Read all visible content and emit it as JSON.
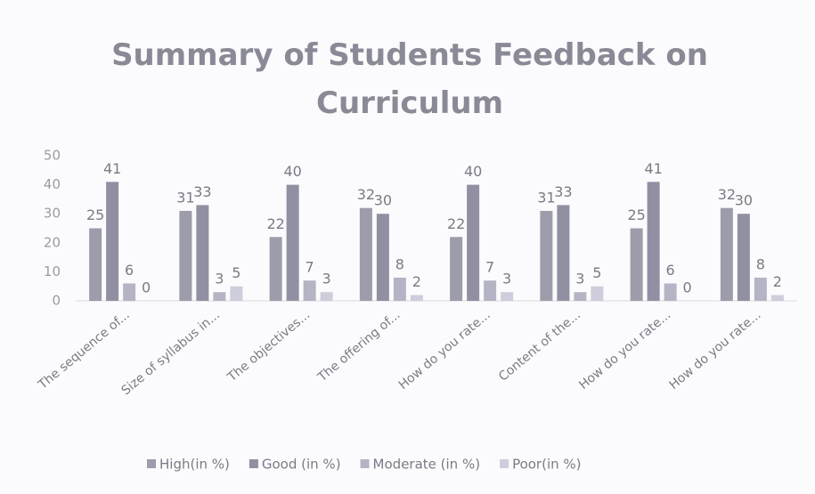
{
  "chart_data": {
    "type": "bar",
    "title": "Summary of Students Feedback on Curriculum",
    "categories": [
      "The sequence of...",
      "Size of syllabus in...",
      "The objectives...",
      "The offering of...",
      "How do you rate...",
      "Content of the...",
      "How do you rate...",
      "How do you rate..."
    ],
    "series": [
      {
        "name": "High(in %)",
        "color": "#9c9caa",
        "values": [
          25,
          31,
          22,
          32,
          22,
          31,
          25,
          32
        ]
      },
      {
        "name": "Good (in %)",
        "color": "#9090a2",
        "values": [
          41,
          33,
          40,
          30,
          40,
          33,
          41,
          30
        ]
      },
      {
        "name": "Moderate (in %)",
        "color": "#b4b4c4",
        "values": [
          6,
          3,
          7,
          8,
          7,
          3,
          6,
          8
        ]
      },
      {
        "name": "Poor(in %)",
        "color": "#cdcddb",
        "values": [
          0,
          5,
          3,
          2,
          3,
          5,
          0,
          2
        ]
      }
    ],
    "ylim": [
      0,
      50
    ],
    "yticks": [
      0,
      10,
      20,
      30,
      40,
      50
    ],
    "grid": false,
    "legend": "bottom"
  }
}
